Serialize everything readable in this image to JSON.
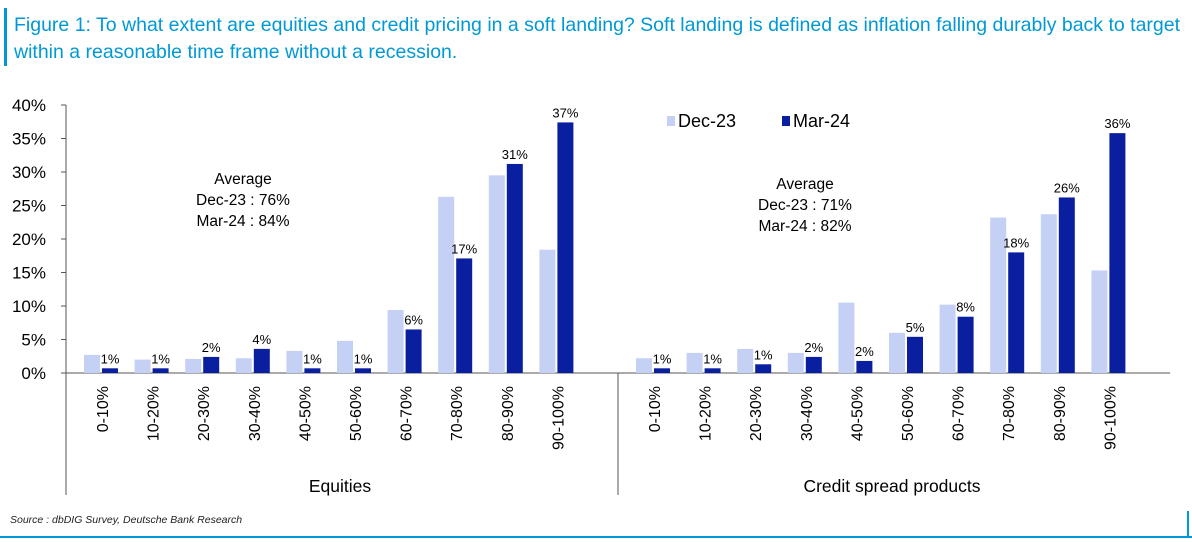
{
  "title": "Figure 1: To what extent are equities and credit pricing in a soft landing? Soft landing is defined as inflation falling durably back to target within a reasonable time frame without a recession.",
  "source": "Source : dbDIG Survey, Deutsche Bank Research",
  "colors": {
    "accent": "#0099d6",
    "dec23": "#c4d0f4",
    "mar24": "#0a1fa0"
  },
  "chart_data": {
    "type": "bar",
    "legend": {
      "items": [
        "Dec-23",
        "Mar-24"
      ],
      "position": "top-right"
    },
    "ylim": [
      0,
      40
    ],
    "yticks": [
      "0%",
      "5%",
      "10%",
      "15%",
      "20%",
      "25%",
      "30%",
      "35%",
      "40%"
    ],
    "categories": [
      "0-10%",
      "10-20%",
      "20-30%",
      "30-40%",
      "40-50%",
      "50-60%",
      "60-70%",
      "70-80%",
      "80-90%",
      "90-100%"
    ],
    "groups": [
      {
        "name": "Equities",
        "annotation": [
          "Average",
          "Dec-23 : 76%",
          "Mar-24 : 84%"
        ],
        "series": [
          {
            "name": "Dec-23",
            "values": [
              2.7,
              2.0,
              2.1,
              2.2,
              3.3,
              4.8,
              9.4,
              26.3,
              29.5,
              18.4
            ]
          },
          {
            "name": "Mar-24",
            "values": [
              0.7,
              0.7,
              2.4,
              3.6,
              0.7,
              0.7,
              6.5,
              17.1,
              31.2,
              37.4
            ]
          }
        ],
        "labels": [
          "1%",
          "1%",
          "2%",
          "4%",
          "1%",
          "1%",
          "6%",
          "17%",
          "31%",
          "37%"
        ]
      },
      {
        "name": "Credit spread products",
        "annotation": [
          "Average",
          "Dec-23 : 71%",
          "Mar-24 : 82%"
        ],
        "series": [
          {
            "name": "Dec-23",
            "values": [
              2.2,
              3.0,
              3.6,
              3.0,
              10.5,
              6.0,
              10.2,
              23.2,
              23.7,
              15.3
            ]
          },
          {
            "name": "Mar-24",
            "values": [
              0.7,
              0.7,
              1.3,
              2.4,
              1.8,
              5.4,
              8.4,
              18.0,
              26.2,
              35.8
            ]
          }
        ],
        "labels": [
          "1%",
          "1%",
          "1%",
          "2%",
          "2%",
          "5%",
          "8%",
          "18%",
          "26%",
          "36%"
        ]
      }
    ]
  }
}
